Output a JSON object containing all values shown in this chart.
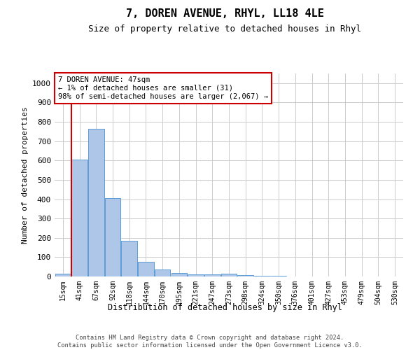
{
  "title": "7, DOREN AVENUE, RHYL, LL18 4LE",
  "subtitle": "Size of property relative to detached houses in Rhyl",
  "xlabel": "Distribution of detached houses by size in Rhyl",
  "ylabel": "Number of detached properties",
  "footer_line1": "Contains HM Land Registry data © Crown copyright and database right 2024.",
  "footer_line2": "Contains public sector information licensed under the Open Government Licence v3.0.",
  "categories": [
    "15sqm",
    "41sqm",
    "67sqm",
    "92sqm",
    "118sqm",
    "144sqm",
    "170sqm",
    "195sqm",
    "221sqm",
    "247sqm",
    "273sqm",
    "298sqm",
    "324sqm",
    "350sqm",
    "376sqm",
    "401sqm",
    "427sqm",
    "453sqm",
    "479sqm",
    "504sqm",
    "530sqm"
  ],
  "bar_values": [
    15,
    605,
    765,
    405,
    185,
    75,
    37,
    17,
    12,
    10,
    13,
    7,
    5,
    2,
    1,
    1,
    0,
    0,
    0,
    0,
    0
  ],
  "bar_color": "#aec6e8",
  "bar_edge_color": "#5b9bd5",
  "grid_color": "#cccccc",
  "vline_color": "#cc0000",
  "annotation_line1": "7 DOREN AVENUE: 47sqm",
  "annotation_line2": "← 1% of detached houses are smaller (31)",
  "annotation_line3": "98% of semi-detached houses are larger (2,067) →",
  "annotation_box_edgecolor": "#cc0000",
  "ylim": [
    0,
    1050
  ],
  "yticks": [
    0,
    100,
    200,
    300,
    400,
    500,
    600,
    700,
    800,
    900,
    1000
  ],
  "background_color": "#ffffff"
}
